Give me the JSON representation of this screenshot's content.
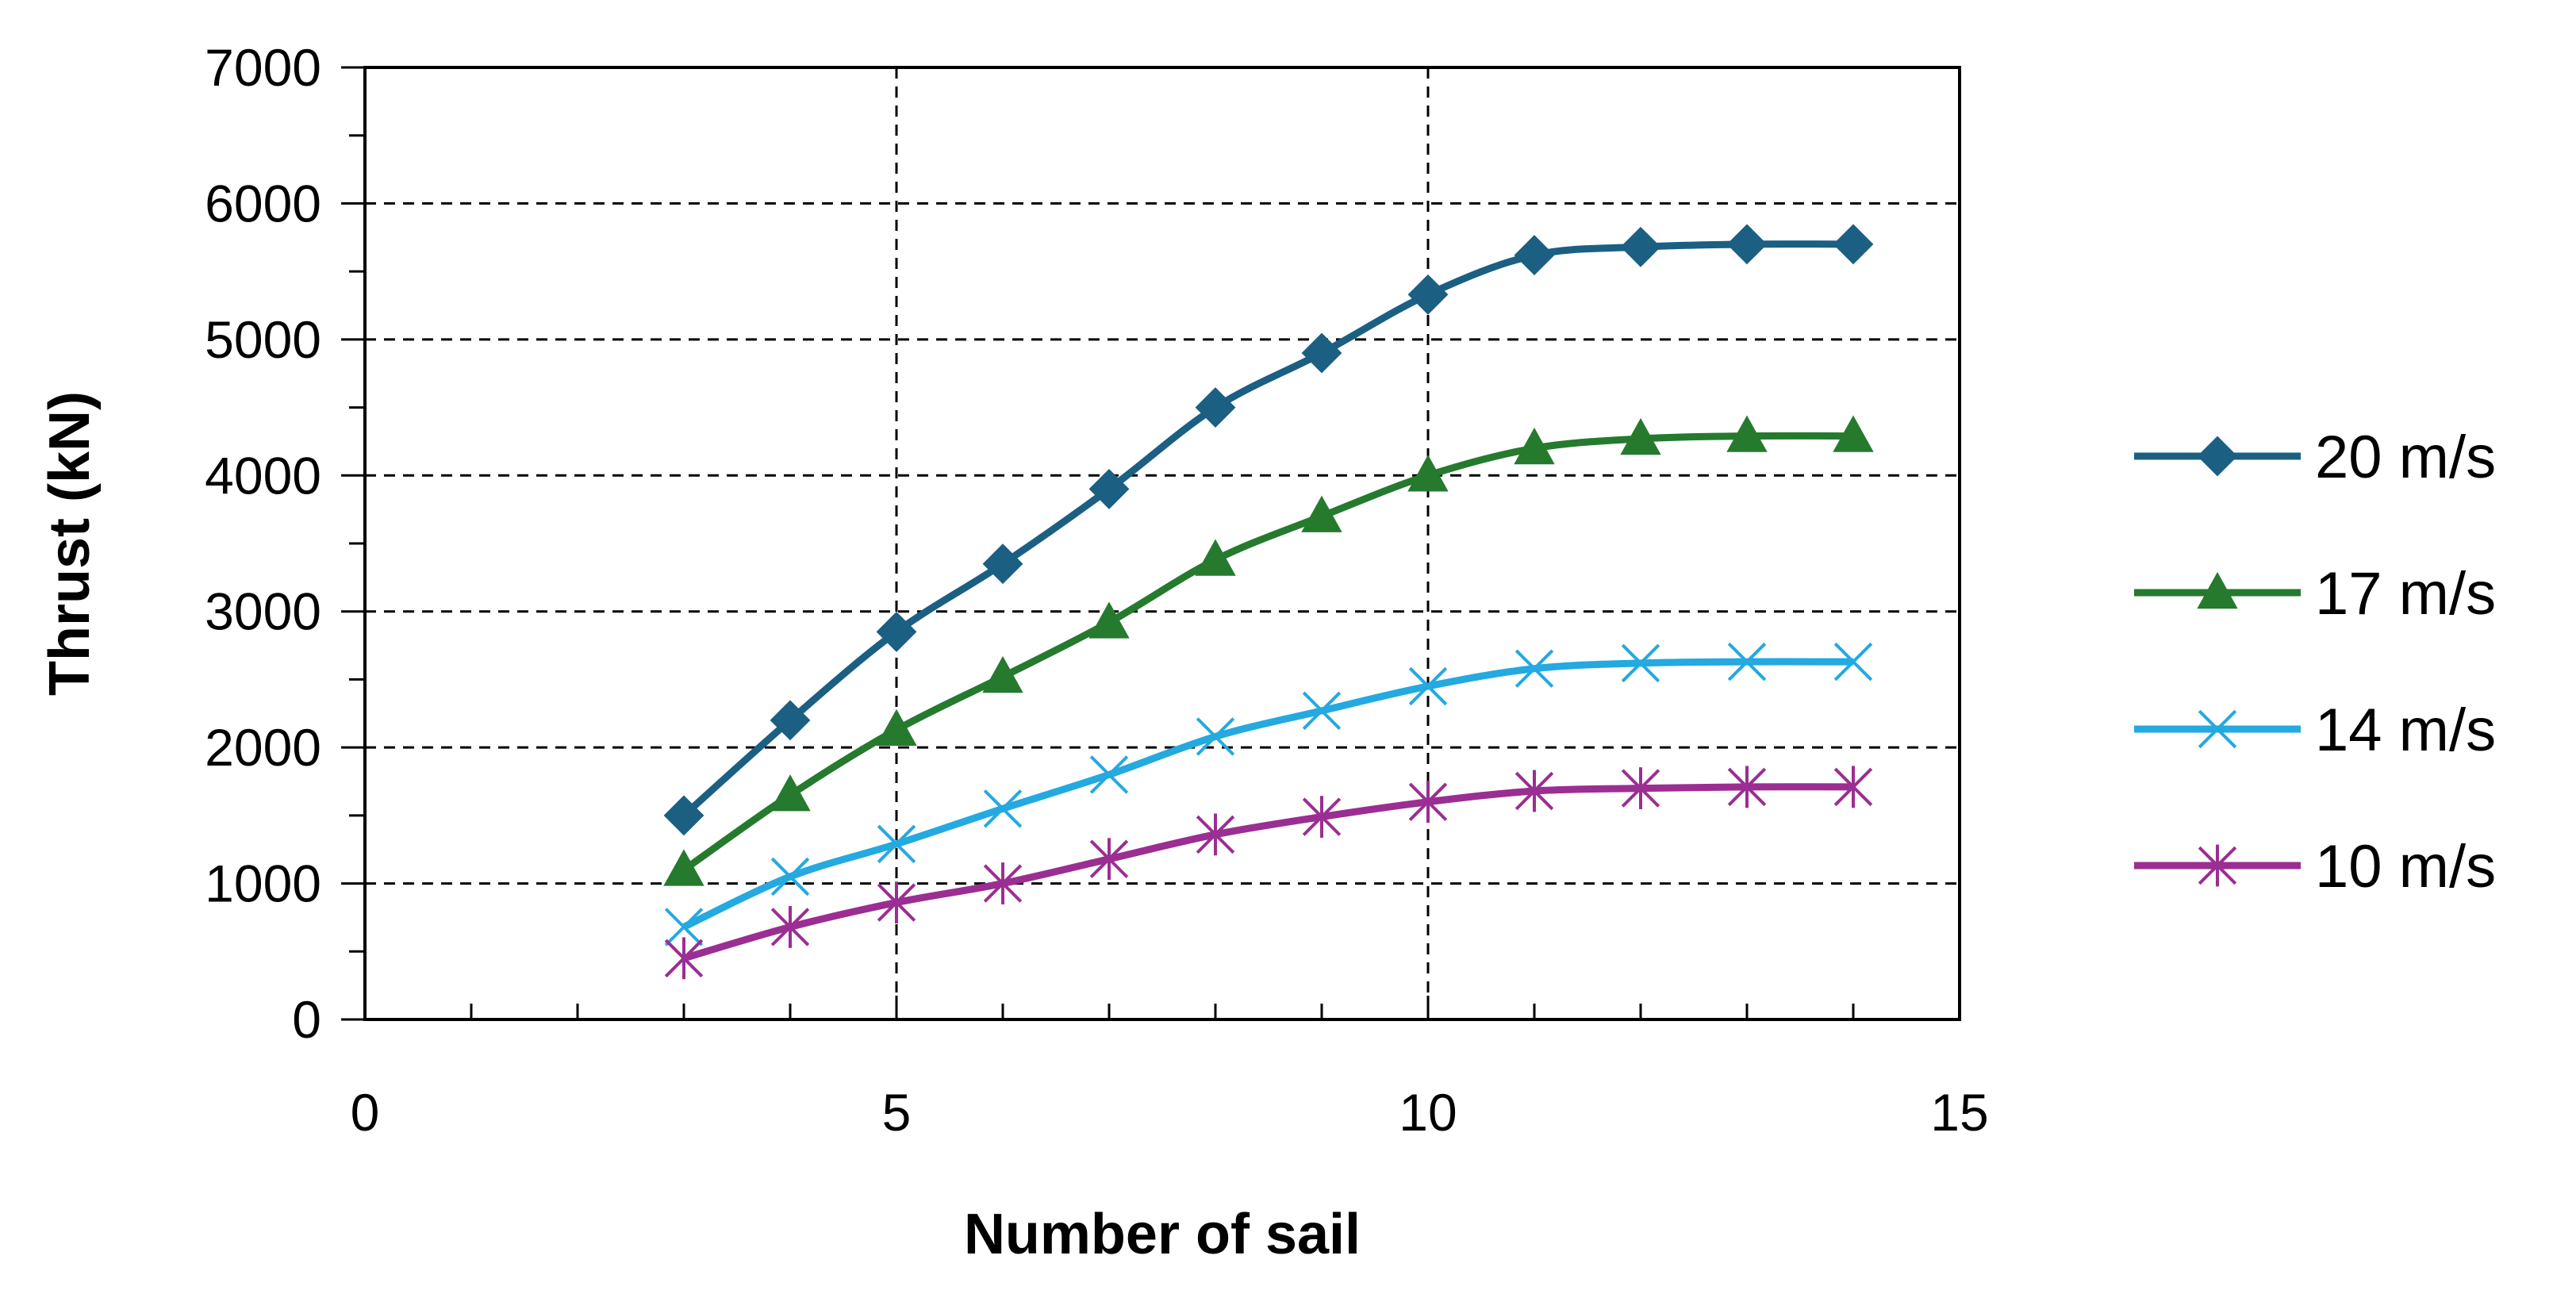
{
  "chart_data": {
    "type": "line",
    "title": "",
    "xlabel": "Number of sail",
    "ylabel": "Thrust (kN)",
    "xlim": [
      0,
      15
    ],
    "ylim": [
      0,
      7000
    ],
    "xticks": [
      0,
      5,
      10,
      15
    ],
    "yticks": [
      0,
      1000,
      2000,
      3000,
      4000,
      5000,
      6000,
      7000
    ],
    "grid": "dashed, at major ticks",
    "legend_position": "right",
    "x": [
      3,
      4,
      5,
      6,
      7,
      8,
      9,
      10,
      11,
      12,
      13,
      14
    ],
    "series": [
      {
        "name": "20 m/s",
        "color": "#1b5f83",
        "marker": "diamond",
        "values": [
          1500,
          2200,
          2850,
          3350,
          3900,
          4500,
          4900,
          5330,
          5620,
          5680,
          5700,
          5700
        ]
      },
      {
        "name": "17 m/s",
        "color": "#257a2e",
        "marker": "triangle",
        "values": [
          1100,
          1650,
          2130,
          2520,
          2920,
          3380,
          3700,
          4000,
          4200,
          4270,
          4290,
          4290
        ]
      },
      {
        "name": "14 m/s",
        "color": "#24a9e0",
        "marker": "x",
        "values": [
          680,
          1050,
          1290,
          1550,
          1800,
          2080,
          2270,
          2450,
          2580,
          2620,
          2630,
          2630
        ]
      },
      {
        "name": "10 m/s",
        "color": "#9b2e92",
        "marker": "asterisk",
        "values": [
          450,
          680,
          860,
          1000,
          1180,
          1360,
          1490,
          1600,
          1680,
          1700,
          1710,
          1710
        ]
      }
    ]
  }
}
